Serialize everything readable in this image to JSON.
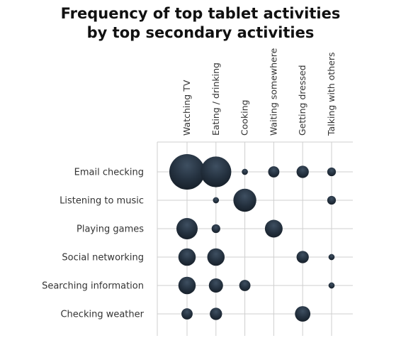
{
  "chart_data": {
    "type": "bubble",
    "title": "Frequency of top tablet activities by top secondary activities",
    "title_lines": [
      "Frequency of top tablet activities",
      "by top secondary activities"
    ],
    "columns": [
      "Watching TV",
      "Eating / drinking",
      "Cooking",
      "Waiting somewhere",
      "Getting dressed",
      "Talking with others"
    ],
    "rows": [
      "Email checking",
      "Listening to music",
      "Playing games",
      "Social networking",
      "Searching information",
      "Checking weather"
    ],
    "values": [
      [
        10,
        7.5,
        0.3,
        1,
        1.2,
        0.6
      ],
      [
        null,
        0.3,
        4.2,
        null,
        null,
        0.6
      ],
      [
        3.6,
        0.6,
        null,
        2.5,
        null,
        null
      ],
      [
        2.4,
        2.4,
        null,
        null,
        1.2,
        0.3
      ],
      [
        2.4,
        1.6,
        1,
        null,
        null,
        0.3
      ],
      [
        1,
        1.2,
        null,
        null,
        1.9,
        null
      ]
    ],
    "grid": true,
    "bubble_color": "#2a3a4a"
  }
}
